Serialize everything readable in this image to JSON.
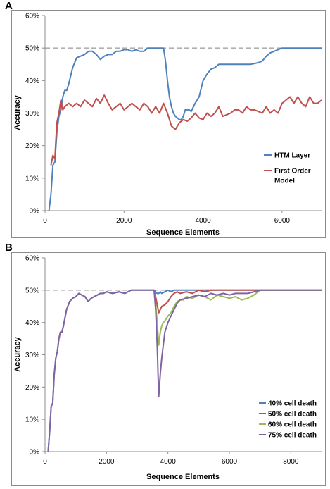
{
  "panels": {
    "a_label": "A",
    "b_label": "B"
  },
  "chart_data": [
    {
      "type": "line",
      "panel": "A",
      "title": "",
      "xlabel": "Sequence Elements",
      "ylabel": "Accuracy",
      "xlim": [
        0,
        7000
      ],
      "ylim": [
        0,
        0.6
      ],
      "xticks": [
        0,
        2000,
        4000,
        6000
      ],
      "xtick_labels": [
        "0",
        "2000",
        "4000",
        "6000"
      ],
      "yticks": [
        0,
        0.1,
        0.2,
        0.3,
        0.4,
        0.5,
        0.6
      ],
      "ytick_labels": [
        "0%",
        "10%",
        "20%",
        "30%",
        "40%",
        "50%",
        "60%"
      ],
      "reference_line": {
        "y": 0.5,
        "style": "dashed",
        "color": "#808080"
      },
      "legend_placement": "right",
      "series": [
        {
          "name": "HTM Layer",
          "color": "#4f81bd",
          "x": [
            100,
            150,
            200,
            250,
            300,
            350,
            400,
            450,
            500,
            550,
            600,
            700,
            800,
            900,
            1000,
            1100,
            1200,
            1300,
            1400,
            1500,
            1600,
            1700,
            1800,
            1900,
            2000,
            2100,
            2200,
            2300,
            2400,
            2500,
            2600,
            2700,
            2800,
            2900,
            3000,
            3050,
            3100,
            3150,
            3200,
            3250,
            3300,
            3350,
            3400,
            3450,
            3500,
            3550,
            3600,
            3650,
            3700,
            3800,
            3900,
            4000,
            4100,
            4200,
            4300,
            4400,
            4600,
            4800,
            5000,
            5200,
            5400,
            5500,
            5600,
            5700,
            5800,
            5900,
            6000,
            6200,
            6500,
            7000
          ],
          "values": [
            0.0,
            0.05,
            0.14,
            0.15,
            0.24,
            0.29,
            0.31,
            0.35,
            0.37,
            0.37,
            0.39,
            0.44,
            0.47,
            0.475,
            0.48,
            0.49,
            0.49,
            0.48,
            0.465,
            0.475,
            0.48,
            0.48,
            0.49,
            0.49,
            0.495,
            0.495,
            0.49,
            0.495,
            0.49,
            0.49,
            0.5,
            0.5,
            0.5,
            0.5,
            0.5,
            0.46,
            0.4,
            0.35,
            0.32,
            0.3,
            0.29,
            0.285,
            0.28,
            0.28,
            0.29,
            0.31,
            0.31,
            0.31,
            0.305,
            0.33,
            0.35,
            0.4,
            0.42,
            0.435,
            0.44,
            0.45,
            0.45,
            0.45,
            0.45,
            0.45,
            0.455,
            0.46,
            0.475,
            0.485,
            0.49,
            0.495,
            0.5,
            0.5,
            0.5,
            0.5
          ]
        },
        {
          "name": "First Order Model",
          "color": "#c0504d",
          "x": [
            150,
            200,
            250,
            300,
            350,
            400,
            450,
            500,
            600,
            700,
            800,
            900,
            1000,
            1100,
            1200,
            1300,
            1400,
            1500,
            1600,
            1700,
            1800,
            1900,
            2000,
            2100,
            2200,
            2300,
            2400,
            2500,
            2600,
            2700,
            2800,
            2900,
            3000,
            3100,
            3200,
            3300,
            3400,
            3500,
            3600,
            3700,
            3800,
            3900,
            4000,
            4100,
            4200,
            4300,
            4400,
            4500,
            4600,
            4700,
            4800,
            4900,
            5000,
            5100,
            5200,
            5300,
            5400,
            5500,
            5600,
            5700,
            5800,
            5900,
            6000,
            6100,
            6200,
            6300,
            6400,
            6500,
            6600,
            6700,
            6800,
            6900,
            7000
          ],
          "values": [
            0.14,
            0.17,
            0.16,
            0.27,
            0.3,
            0.34,
            0.31,
            0.32,
            0.33,
            0.32,
            0.33,
            0.32,
            0.34,
            0.33,
            0.32,
            0.345,
            0.33,
            0.355,
            0.33,
            0.31,
            0.32,
            0.33,
            0.31,
            0.32,
            0.33,
            0.32,
            0.31,
            0.33,
            0.32,
            0.3,
            0.32,
            0.3,
            0.33,
            0.3,
            0.26,
            0.25,
            0.27,
            0.28,
            0.275,
            0.285,
            0.3,
            0.285,
            0.28,
            0.3,
            0.29,
            0.3,
            0.32,
            0.29,
            0.295,
            0.3,
            0.31,
            0.31,
            0.3,
            0.32,
            0.31,
            0.31,
            0.305,
            0.3,
            0.32,
            0.3,
            0.31,
            0.3,
            0.33,
            0.34,
            0.35,
            0.33,
            0.35,
            0.33,
            0.32,
            0.35,
            0.33,
            0.33,
            0.34
          ]
        }
      ]
    },
    {
      "type": "line",
      "panel": "B",
      "title": "",
      "xlabel": "Sequence Elements",
      "ylabel": "Accuracy",
      "xlim": [
        0,
        9000
      ],
      "ylim": [
        0,
        0.6
      ],
      "xticks": [
        0,
        2000,
        4000,
        6000,
        8000
      ],
      "xtick_labels": [
        "0",
        "2000",
        "4000",
        "6000",
        "8000"
      ],
      "yticks": [
        0,
        0.1,
        0.2,
        0.3,
        0.4,
        0.5,
        0.6
      ],
      "ytick_labels": [
        "0%",
        "10%",
        "20%",
        "30%",
        "40%",
        "50%",
        "60%"
      ],
      "reference_line": {
        "y": 0.5,
        "style": "dashed",
        "color": "#808080"
      },
      "legend_placement": "bottom-right",
      "series": [
        {
          "name": "40% cell death",
          "color": "#4f81bd",
          "x": [
            100,
            150,
            200,
            250,
            300,
            350,
            400,
            450,
            500,
            550,
            600,
            700,
            800,
            900,
            1000,
            1100,
            1200,
            1300,
            1400,
            1500,
            1600,
            1700,
            1800,
            1900,
            2000,
            2200,
            2400,
            2600,
            2800,
            3000,
            3200,
            3400,
            3550,
            3600,
            3650,
            3700,
            3750,
            3800,
            3900,
            4000,
            4100,
            4200,
            4400,
            4600,
            5000,
            6000,
            7000,
            8000,
            9000
          ],
          "values": [
            0.0,
            0.06,
            0.14,
            0.15,
            0.24,
            0.29,
            0.31,
            0.35,
            0.37,
            0.37,
            0.39,
            0.44,
            0.465,
            0.475,
            0.48,
            0.49,
            0.485,
            0.48,
            0.465,
            0.475,
            0.48,
            0.485,
            0.49,
            0.49,
            0.495,
            0.49,
            0.495,
            0.49,
            0.5,
            0.5,
            0.5,
            0.5,
            0.5,
            0.495,
            0.49,
            0.49,
            0.495,
            0.49,
            0.495,
            0.5,
            0.495,
            0.5,
            0.5,
            0.5,
            0.5,
            0.5,
            0.5,
            0.5,
            0.5
          ]
        },
        {
          "name": "50% cell death",
          "color": "#c0504d",
          "x": [
            3550,
            3600,
            3650,
            3700,
            3750,
            3800,
            3900,
            4000,
            4100,
            4200,
            4300,
            4400,
            4600,
            4800,
            5000,
            5200,
            5400,
            5600,
            5800,
            6000,
            6500,
            7000,
            8000,
            9000
          ],
          "values": [
            0.5,
            0.48,
            0.455,
            0.43,
            0.44,
            0.45,
            0.455,
            0.465,
            0.48,
            0.49,
            0.495,
            0.49,
            0.495,
            0.49,
            0.5,
            0.495,
            0.5,
            0.5,
            0.5,
            0.5,
            0.5,
            0.5,
            0.5,
            0.5
          ]
        },
        {
          "name": "60% cell death",
          "color": "#9bbb59",
          "x": [
            3550,
            3600,
            3650,
            3700,
            3750,
            3800,
            3850,
            3900,
            4000,
            4100,
            4200,
            4300,
            4400,
            4500,
            4600,
            4800,
            5000,
            5200,
            5400,
            5600,
            5800,
            6000,
            6200,
            6400,
            6600,
            6800,
            7000,
            8000,
            9000
          ],
          "values": [
            0.5,
            0.46,
            0.4,
            0.33,
            0.37,
            0.39,
            0.4,
            0.405,
            0.42,
            0.43,
            0.45,
            0.465,
            0.47,
            0.47,
            0.48,
            0.475,
            0.485,
            0.48,
            0.47,
            0.485,
            0.48,
            0.475,
            0.48,
            0.47,
            0.475,
            0.485,
            0.5,
            0.5,
            0.5
          ]
        },
        {
          "name": "75% cell death",
          "color": "#8064a2",
          "x": [
            100,
            150,
            200,
            250,
            300,
            350,
            400,
            450,
            500,
            550,
            600,
            700,
            800,
            900,
            1000,
            1100,
            1200,
            1300,
            1400,
            1500,
            1600,
            1700,
            1800,
            1900,
            2000,
            2200,
            2400,
            2600,
            2800,
            3000,
            3200,
            3400,
            3550,
            3600,
            3650,
            3700,
            3750,
            3800,
            3850,
            3900,
            4000,
            4100,
            4200,
            4300,
            4400,
            4600,
            4800,
            5000,
            5200,
            5400,
            5600,
            5800,
            6000,
            6200,
            6400,
            6600,
            6800,
            7000,
            8000,
            9000
          ],
          "values": [
            0.0,
            0.06,
            0.14,
            0.15,
            0.24,
            0.29,
            0.31,
            0.35,
            0.37,
            0.37,
            0.39,
            0.44,
            0.465,
            0.475,
            0.48,
            0.49,
            0.485,
            0.48,
            0.465,
            0.475,
            0.48,
            0.485,
            0.49,
            0.49,
            0.495,
            0.49,
            0.495,
            0.49,
            0.5,
            0.5,
            0.5,
            0.5,
            0.5,
            0.44,
            0.33,
            0.17,
            0.24,
            0.29,
            0.33,
            0.37,
            0.4,
            0.42,
            0.44,
            0.46,
            0.47,
            0.475,
            0.48,
            0.485,
            0.48,
            0.49,
            0.485,
            0.49,
            0.485,
            0.49,
            0.49,
            0.49,
            0.495,
            0.5,
            0.5,
            0.5
          ]
        }
      ]
    }
  ]
}
